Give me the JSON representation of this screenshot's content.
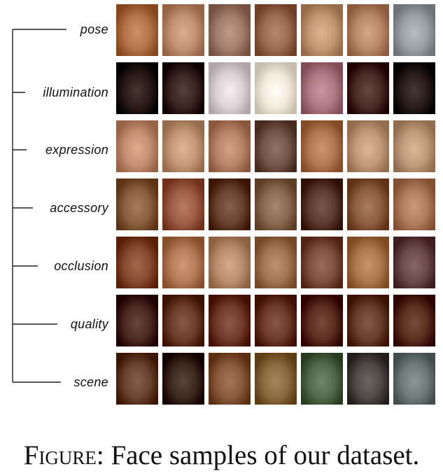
{
  "figure": {
    "categories": [
      {
        "label": "pose",
        "tones": [
          "#b37449",
          "#c29173",
          "#a37e6c",
          "#9c6b52",
          "#c49873",
          "#b9896a",
          "#9aa0a5"
        ]
      },
      {
        "label": "illumination",
        "tones": [
          "#2b1a16",
          "#3a2520",
          "#ddd2d6",
          "#f3eadc",
          "#b07a85",
          "#4a2c26",
          "#2a1c1a"
        ]
      },
      {
        "label": "expression",
        "tones": [
          "#c48f72",
          "#c49879",
          "#b8846a",
          "#73574a",
          "#b07954",
          "#c19a7c",
          "#c09b7b"
        ]
      },
      {
        "label": "accessory",
        "tones": [
          "#8a6040",
          "#9d5d46",
          "#6a4330",
          "#8a6a50",
          "#5d3b30",
          "#8e5f43",
          "#b07e5e"
        ]
      },
      {
        "label": "occlusion",
        "tones": [
          "#864b30",
          "#b57c5a",
          "#ba8f70",
          "#a37653",
          "#7d5040",
          "#ab7850",
          "#6a4a4a"
        ]
      },
      {
        "label": "quality",
        "tones": [
          "#4b2a20",
          "#6a3e2a",
          "#713c2a",
          "#6d3a2c",
          "#5b2e20",
          "#6a3e2e",
          "#5a301f"
        ]
      },
      {
        "label": "scene",
        "tones": [
          "#6a4230",
          "#3d2a1e",
          "#8a5a3c",
          "#8a6a3e",
          "#55694d",
          "#4f4a48",
          "#6f7b7a"
        ]
      }
    ],
    "caption_prefix": "Figure",
    "caption_text": ": Face samples of our dataset."
  }
}
